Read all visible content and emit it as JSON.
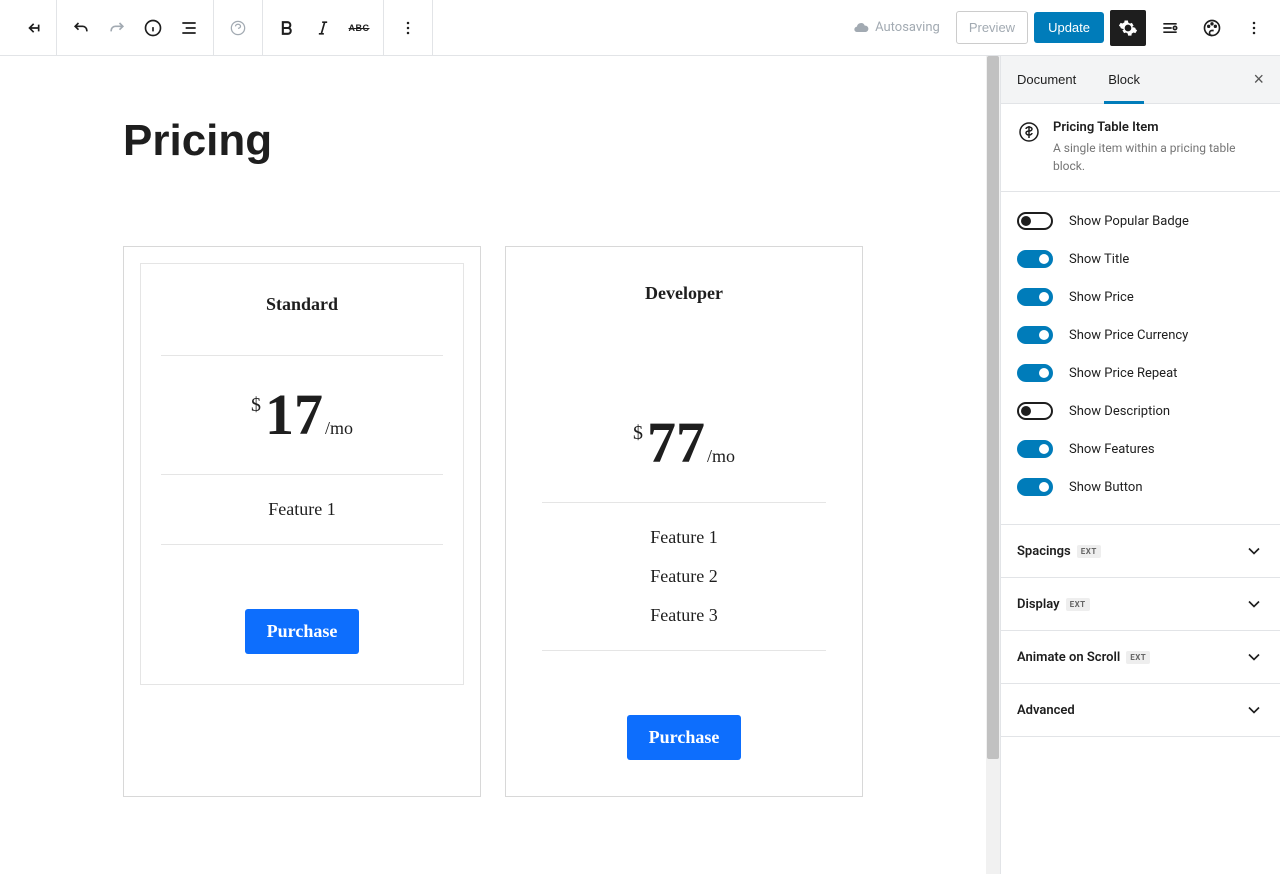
{
  "toolbar": {
    "autosaving": "Autosaving",
    "preview": "Preview",
    "update": "Update"
  },
  "editor": {
    "page_title": "Pricing",
    "cards": [
      {
        "name": "Standard",
        "currency": "$",
        "amount": "17",
        "period": "/mo",
        "features": [
          "Feature 1"
        ],
        "button": "Purchase"
      },
      {
        "name": "Developer",
        "currency": "$",
        "amount": "77",
        "period": "/mo",
        "features": [
          "Feature 1",
          "Feature 2",
          "Feature 3"
        ],
        "button": "Purchase"
      }
    ]
  },
  "sidebar": {
    "tabs": {
      "document": "Document",
      "block": "Block"
    },
    "block": {
      "title": "Pricing Table Item",
      "desc": "A single item within a pricing table block."
    },
    "toggles": [
      {
        "label": "Show Popular Badge",
        "on": false
      },
      {
        "label": "Show Title",
        "on": true
      },
      {
        "label": "Show Price",
        "on": true
      },
      {
        "label": "Show Price Currency",
        "on": true
      },
      {
        "label": "Show Price Repeat",
        "on": true
      },
      {
        "label": "Show Description",
        "on": false
      },
      {
        "label": "Show Features",
        "on": true
      },
      {
        "label": "Show Button",
        "on": true
      }
    ],
    "panels": [
      {
        "title": "Spacings",
        "ext": true
      },
      {
        "title": "Display",
        "ext": true
      },
      {
        "title": "Animate on Scroll",
        "ext": true
      },
      {
        "title": "Advanced",
        "ext": false
      }
    ]
  },
  "colors": {
    "primary": "#007cba",
    "button_blue": "#0d6efd",
    "settings_bg": "#1e1e1e"
  }
}
